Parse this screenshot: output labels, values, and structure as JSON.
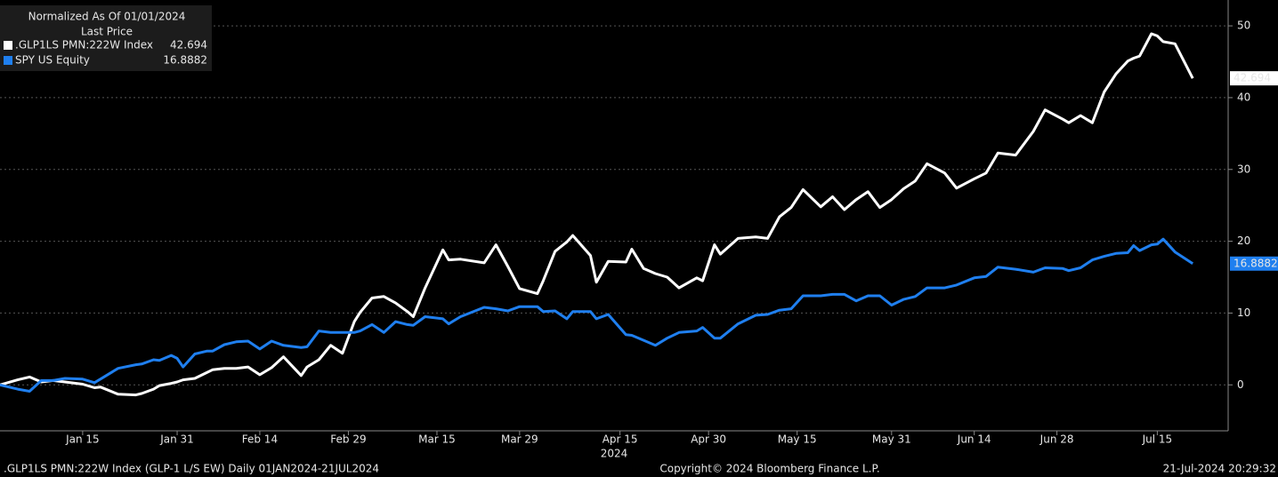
{
  "chart_data": {
    "type": "line",
    "legend_title": "Normalized As Of 01/01/2024",
    "legend_subtitle": "Last Price",
    "legend": "upper left",
    "xlabel": "2024",
    "x": [
      "2024-01-01",
      "2024-01-04",
      "2024-01-06",
      "2024-01-08",
      "2024-01-10",
      "2024-01-12",
      "2024-01-15",
      "2024-01-17",
      "2024-01-18",
      "2024-01-21",
      "2024-01-24",
      "2024-01-25",
      "2024-01-27",
      "2024-01-28",
      "2024-01-30",
      "2024-01-31",
      "2024-02-01",
      "2024-02-03",
      "2024-02-05",
      "2024-02-06",
      "2024-02-08",
      "2024-02-10",
      "2024-02-12",
      "2024-02-14",
      "2024-02-16",
      "2024-02-18",
      "2024-02-21",
      "2024-02-22",
      "2024-02-24",
      "2024-02-26",
      "2024-02-28",
      "2024-03-01",
      "2024-03-02",
      "2024-03-04",
      "2024-03-06",
      "2024-03-08",
      "2024-03-10",
      "2024-03-11",
      "2024-03-13",
      "2024-03-16",
      "2024-03-17",
      "2024-03-19",
      "2024-03-23",
      "2024-03-25",
      "2024-03-27",
      "2024-03-29",
      "2024-04-01",
      "2024-04-02",
      "2024-04-04",
      "2024-04-06",
      "2024-04-07",
      "2024-04-10",
      "2024-04-11",
      "2024-04-13",
      "2024-04-16",
      "2024-04-17",
      "2024-04-19",
      "2024-04-21",
      "2024-04-23",
      "2024-04-25",
      "2024-04-28",
      "2024-04-29",
      "2024-05-01",
      "2024-05-02",
      "2024-05-05",
      "2024-05-08",
      "2024-05-10",
      "2024-05-12",
      "2024-05-14",
      "2024-05-16",
      "2024-05-19",
      "2024-05-21",
      "2024-05-23",
      "2024-05-25",
      "2024-05-27",
      "2024-05-29",
      "2024-05-31",
      "2024-06-02",
      "2024-06-04",
      "2024-06-06",
      "2024-06-09",
      "2024-06-11",
      "2024-06-14",
      "2024-06-16",
      "2024-06-18",
      "2024-06-21",
      "2024-06-24",
      "2024-06-26",
      "2024-06-29",
      "2024-06-30",
      "2024-07-02",
      "2024-07-04",
      "2024-07-06",
      "2024-07-08",
      "2024-07-10",
      "2024-07-11",
      "2024-07-12",
      "2024-07-14",
      "2024-07-15",
      "2024-07-16",
      "2024-07-18",
      "2024-07-21"
    ],
    "series": [
      {
        "name": ".GLP1LS PMN:222W Index",
        "color": "#ffffff",
        "values": [
          0,
          0.7,
          1.1,
          0.4,
          0.6,
          0.4,
          0.1,
          -0.4,
          -0.3,
          -1.3,
          -1.4,
          -1.2,
          -0.6,
          -0.1,
          0.2,
          0.4,
          0.7,
          0.9,
          1.7,
          2.1,
          2.3,
          2.3,
          2.5,
          1.4,
          2.4,
          3.9,
          1.3,
          2.5,
          3.5,
          5.5,
          4.4,
          8.8,
          10.1,
          12.1,
          12.3,
          11.4,
          10.2,
          9.5,
          13.5,
          18.8,
          17.4,
          17.5,
          17.0,
          19.5,
          16.5,
          13.4,
          12.7,
          14.5,
          18.6,
          19.9,
          20.8,
          18.0,
          14.3,
          17.2,
          17.1,
          18.9,
          16.2,
          15.5,
          15.0,
          13.5,
          14.9,
          14.5,
          19.5,
          18.2,
          20.4,
          20.6,
          20.4,
          23.4,
          24.7,
          27.2,
          24.8,
          26.2,
          24.4,
          25.8,
          26.9,
          24.7,
          25.8,
          27.3,
          28.4,
          30.8,
          29.5,
          27.4,
          28.7,
          29.5,
          32.3,
          32.0,
          35.3,
          38.3,
          37.0,
          36.5,
          37.5,
          36.5,
          40.8,
          43.3,
          45.1,
          45.5,
          45.8,
          48.9,
          48.6,
          47.8,
          47.5,
          42.694
        ]
      },
      {
        "name": "SPY US Equity",
        "color": "#1f7fef",
        "values": [
          0,
          -0.6,
          -0.9,
          0.6,
          0.6,
          0.9,
          0.8,
          0.3,
          0.8,
          2.3,
          2.8,
          2.9,
          3.5,
          3.4,
          4.1,
          3.7,
          2.5,
          4.3,
          4.7,
          4.7,
          5.6,
          6.0,
          6.1,
          5.0,
          6.1,
          5.5,
          5.2,
          5.3,
          7.5,
          7.3,
          7.3,
          7.3,
          7.5,
          8.4,
          7.3,
          8.8,
          8.4,
          8.3,
          9.5,
          9.2,
          8.5,
          9.5,
          10.8,
          10.6,
          10.3,
          10.9,
          10.9,
          10.2,
          10.3,
          9.2,
          10.2,
          10.2,
          9.2,
          9.8,
          7.0,
          6.9,
          6.2,
          5.5,
          6.5,
          7.3,
          7.5,
          8.0,
          6.5,
          6.5,
          8.5,
          9.7,
          9.8,
          10.4,
          10.6,
          12.4,
          12.4,
          12.6,
          12.6,
          11.7,
          12.4,
          12.4,
          11.1,
          11.9,
          12.3,
          13.5,
          13.5,
          13.9,
          14.9,
          15.1,
          16.4,
          16.1,
          15.7,
          16.3,
          16.2,
          15.9,
          16.3,
          17.4,
          17.9,
          18.3,
          18.4,
          19.4,
          18.7,
          19.5,
          19.6,
          20.3,
          18.5,
          16.8882
        ]
      }
    ],
    "xlim": [
      "2024-01-01",
      "2024-07-27"
    ],
    "xticks": [
      {
        "value": "2024-01-15",
        "label": "Jan 15"
      },
      {
        "value": "2024-01-31",
        "label": "Jan 31"
      },
      {
        "value": "2024-02-14",
        "label": "Feb 14"
      },
      {
        "value": "2024-02-29",
        "label": "Feb 29"
      },
      {
        "value": "2024-03-15",
        "label": "Mar 15"
      },
      {
        "value": "2024-03-29",
        "label": "Mar 29"
      },
      {
        "value": "2024-04-15",
        "label": "Apr 15"
      },
      {
        "value": "2024-04-30",
        "label": "Apr 30"
      },
      {
        "value": "2024-05-15",
        "label": "May 15"
      },
      {
        "value": "2024-05-31",
        "label": "May 31"
      },
      {
        "value": "2024-06-14",
        "label": "Jun 14"
      },
      {
        "value": "2024-06-28",
        "label": "Jun 28"
      },
      {
        "value": "2024-07-15",
        "label": "Jul 15"
      }
    ],
    "ylim": [
      -6.4,
      53.6
    ],
    "yticks": [
      0,
      10,
      20,
      30,
      40,
      50
    ],
    "grid": true
  },
  "footer": {
    "left": ".GLP1LS PMN:222W Index (GLP-1 L/S EW)  Daily 01JAN2024-21JUL2024",
    "center": "Copyright© 2024 Bloomberg Finance L.P.",
    "right": "21-Jul-2024 20:29:32"
  }
}
